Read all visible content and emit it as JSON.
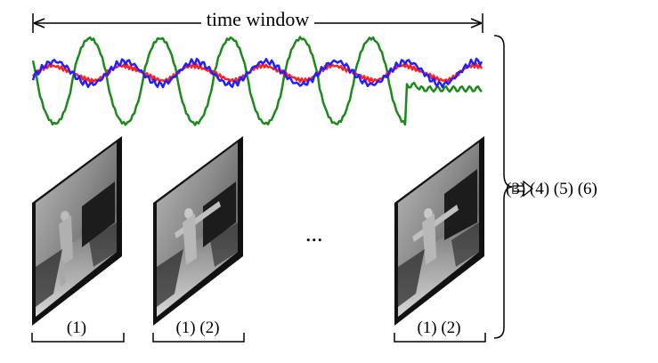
{
  "title": "time window",
  "frames": [
    {
      "label": "(1)"
    },
    {
      "label": "(1) (2)"
    },
    {
      "label": "(1) (2)"
    }
  ],
  "ellipsis": "...",
  "output_label": "(3) (4) (5) (6)",
  "colors": {
    "signal_blue": "#1f1fff",
    "signal_red": "#ff2020",
    "signal_green": "#1a8a1a",
    "line": "#000000"
  }
}
